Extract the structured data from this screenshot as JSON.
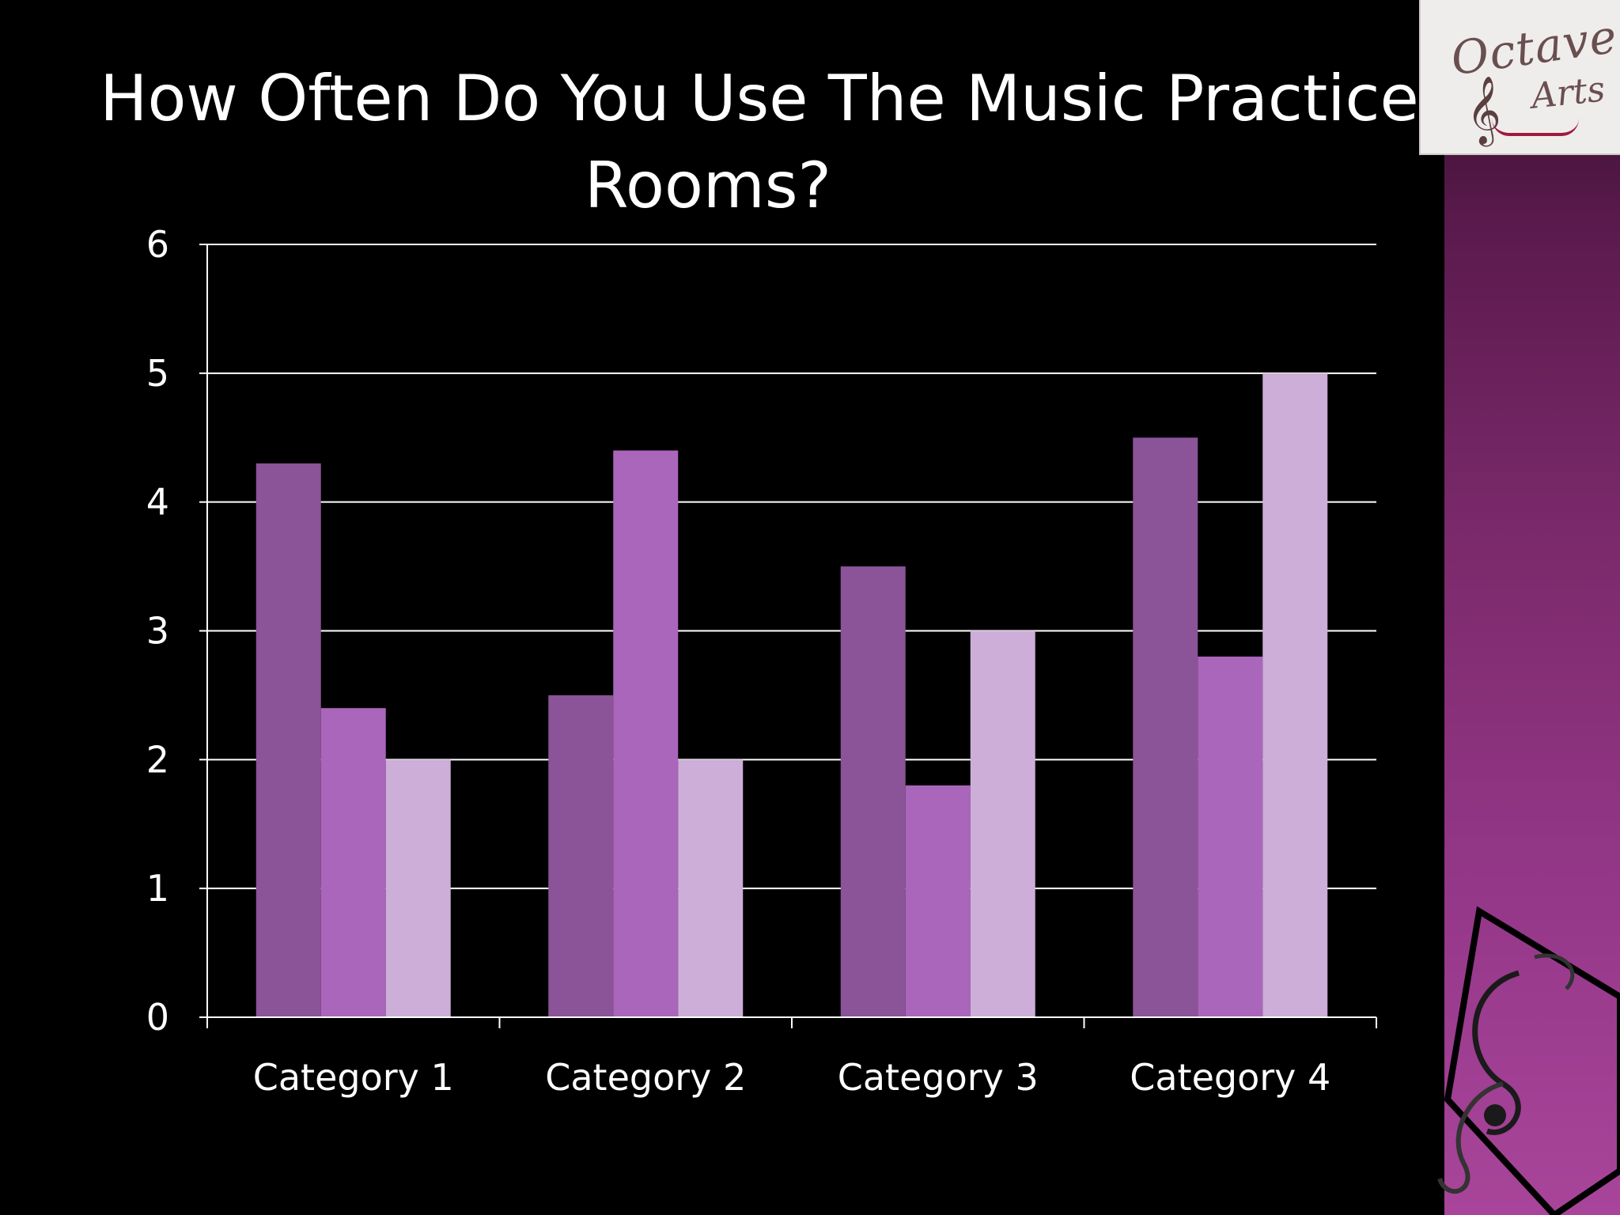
{
  "slide": {
    "title_line1": "How Often Do You Use The Music Practice",
    "title_line2": "Rooms?",
    "logo_word1": "Octave",
    "logo_word2": "Arts",
    "logo_clef_icon": "treble-clef-icon",
    "accent_color": "#9b3a8c"
  },
  "chart_data": {
    "type": "bar",
    "title": "How Often Do You Use The Music Practice Rooms?",
    "xlabel": "",
    "ylabel": "",
    "categories": [
      "Category 1",
      "Category 2",
      "Category 3",
      "Category 4"
    ],
    "series": [
      {
        "values": [
          4.3,
          2.5,
          3.5,
          4.5
        ],
        "color": "#8b5398"
      },
      {
        "values": [
          2.4,
          4.4,
          1.8,
          2.8
        ],
        "color": "#aa66bb"
      },
      {
        "values": [
          2.0,
          2.0,
          3.0,
          5.0
        ],
        "color": "#ccaed8"
      }
    ],
    "ylim": [
      0,
      6
    ],
    "yticks": [
      "0",
      "1",
      "2",
      "3",
      "4",
      "5",
      "6"
    ],
    "grid": true,
    "legend": "none"
  }
}
